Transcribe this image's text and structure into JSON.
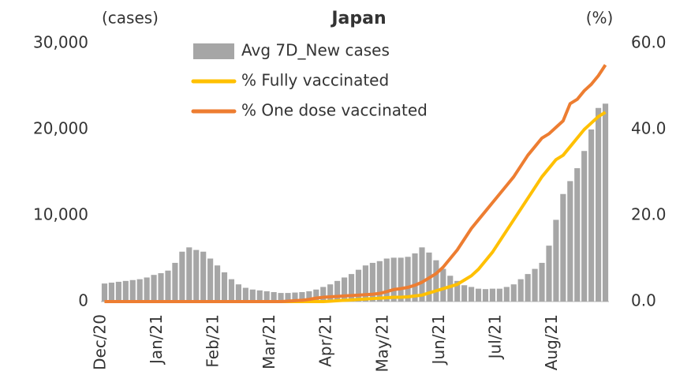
{
  "chart_data": {
    "type": "bar",
    "title": "Japan",
    "y_axis_label": "(cases)",
    "y2_axis_label": "(%)",
    "categories": [
      "Dec/20",
      null,
      null,
      null,
      null,
      null,
      null,
      null,
      "Jan/21",
      null,
      null,
      null,
      null,
      null,
      null,
      null,
      "Feb/21",
      null,
      null,
      null,
      null,
      null,
      null,
      null,
      "Mar/21",
      null,
      null,
      null,
      null,
      null,
      null,
      null,
      "Apr/21",
      null,
      null,
      null,
      null,
      null,
      null,
      null,
      "May/21",
      null,
      null,
      null,
      null,
      null,
      null,
      null,
      "Jun/21",
      null,
      null,
      null,
      null,
      null,
      null,
      null,
      "Jul/21",
      null,
      null,
      null,
      null,
      null,
      null,
      null,
      "Aug/21",
      null,
      null,
      null,
      null,
      null,
      null,
      null
    ],
    "series": [
      {
        "name": "Avg 7D_New cases",
        "type": "bar",
        "color": "#a6a6a6",
        "axis": "y",
        "values": [
          2100,
          2200,
          2300,
          2400,
          2500,
          2600,
          2800,
          3100,
          3300,
          3600,
          4500,
          5800,
          6300,
          6000,
          5800,
          5000,
          4200,
          3400,
          2600,
          2000,
          1600,
          1400,
          1300,
          1200,
          1100,
          1000,
          1000,
          1050,
          1100,
          1200,
          1400,
          1700,
          2000,
          2400,
          2800,
          3200,
          3700,
          4200,
          4500,
          4700,
          5000,
          5100,
          5100,
          5200,
          5600,
          6300,
          5700,
          4800,
          3800,
          3000,
          2400,
          1900,
          1700,
          1500,
          1450,
          1500,
          1500,
          1700,
          2000,
          2600,
          3200,
          3800,
          4500,
          6500,
          9500,
          12500,
          14000,
          15500,
          17500,
          20000,
          22500,
          23000
        ]
      },
      {
        "name": "% Fully vaccinated",
        "type": "line",
        "color": "#ffc000",
        "axis": "y2",
        "values": [
          0,
          0,
          0,
          0,
          0,
          0,
          0,
          0,
          0,
          0,
          0,
          0,
          0,
          0,
          0,
          0,
          0,
          0,
          0,
          0,
          0,
          0,
          0,
          0,
          0,
          0,
          0,
          0,
          0,
          0,
          0,
          0,
          0.1,
          0.2,
          0.3,
          0.4,
          0.5,
          0.6,
          0.7,
          0.8,
          0.9,
          1.0,
          1.0,
          1.1,
          1.3,
          1.5,
          2.0,
          2.5,
          3.0,
          3.5,
          4.0,
          5,
          6,
          7.5,
          9.5,
          11.5,
          14,
          16.5,
          19,
          21.5,
          24,
          26.5,
          29,
          31,
          33,
          34,
          36,
          38,
          40,
          41.5,
          43,
          44
        ]
      },
      {
        "name": "% One dose vaccinated",
        "type": "line",
        "color": "#ed7d31",
        "axis": "y2",
        "values": [
          0,
          0,
          0,
          0,
          0,
          0,
          0,
          0,
          0,
          0,
          0,
          0,
          0,
          0,
          0,
          0,
          0,
          0,
          0,
          0,
          0,
          0,
          0,
          0,
          0,
          0,
          0.1,
          0.2,
          0.3,
          0.5,
          0.8,
          1.0,
          1.1,
          1.2,
          1.3,
          1.4,
          1.5,
          1.6,
          1.7,
          1.9,
          2.3,
          2.8,
          3.0,
          3.3,
          3.8,
          4.5,
          5.5,
          6.5,
          8,
          10,
          12,
          14.5,
          17,
          19,
          21,
          23,
          25,
          27,
          29,
          31.5,
          34,
          36,
          38,
          39,
          40.5,
          42,
          46,
          47,
          49,
          50.5,
          52.5,
          55
        ]
      }
    ],
    "ylim": [
      0,
      30000
    ],
    "yticks": [
      0,
      {
        "value": 10000,
        "label": "10,000"
      },
      {
        "value": 20000,
        "label": "20,000"
      },
      {
        "value": 30000,
        "label": "30,000"
      }
    ],
    "y2lim": [
      0,
      60
    ],
    "y2ticks": [
      {
        "value": 0,
        "label": "0.0"
      },
      {
        "value": 20,
        "label": "20.0"
      },
      {
        "value": 40,
        "label": "40.0"
      },
      {
        "value": 60,
        "label": "60.0"
      }
    ],
    "grid": false
  }
}
